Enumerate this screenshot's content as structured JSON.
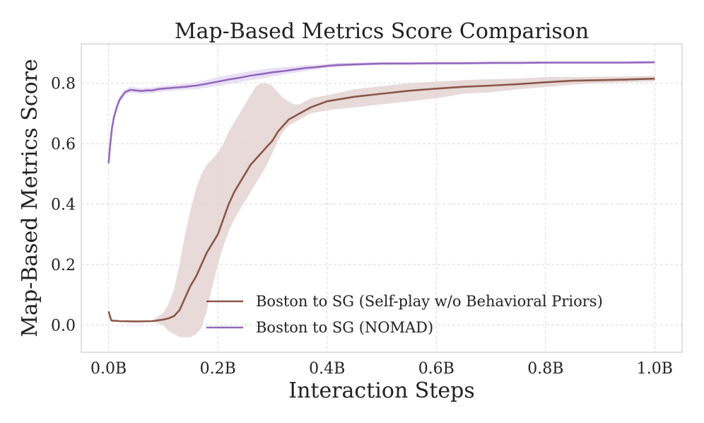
{
  "chart_data": {
    "type": "line",
    "title": "Map-Based Metrics Score Comparison",
    "xlabel": "Interaction Steps",
    "ylabel": "Map-Based Metrics Score",
    "xlim": [
      -0.05,
      1.05
    ],
    "ylim": [
      -0.09,
      0.93
    ],
    "x_ticks": [
      0.0,
      0.2,
      0.4,
      0.6,
      0.8,
      1.0
    ],
    "x_tick_labels": [
      "0.0B",
      "0.2B",
      "0.4B",
      "0.6B",
      "0.8B",
      "1.0B"
    ],
    "y_ticks": [
      0.0,
      0.2,
      0.4,
      0.6,
      0.8
    ],
    "y_tick_labels": [
      "0.0",
      "0.2",
      "0.4",
      "0.6",
      "0.8"
    ],
    "grid": true,
    "legend_position": "lower-right",
    "series": [
      {
        "name": "Boston to SG (Self-play w/o Behavioral Priors)",
        "color": "#8c564b",
        "band_color": "#e3d3d1",
        "x": [
          0.0,
          0.005,
          0.02,
          0.05,
          0.08,
          0.1,
          0.11,
          0.12,
          0.13,
          0.14,
          0.15,
          0.16,
          0.17,
          0.18,
          0.19,
          0.2,
          0.21,
          0.22,
          0.23,
          0.24,
          0.25,
          0.26,
          0.27,
          0.28,
          0.29,
          0.3,
          0.31,
          0.32,
          0.33,
          0.34,
          0.35,
          0.37,
          0.4,
          0.45,
          0.5,
          0.55,
          0.6,
          0.65,
          0.7,
          0.75,
          0.8,
          0.85,
          0.9,
          0.95,
          1.0
        ],
        "values": [
          0.045,
          0.015,
          0.013,
          0.012,
          0.013,
          0.018,
          0.022,
          0.03,
          0.05,
          0.09,
          0.13,
          0.16,
          0.2,
          0.24,
          0.27,
          0.3,
          0.35,
          0.4,
          0.44,
          0.47,
          0.5,
          0.53,
          0.55,
          0.57,
          0.59,
          0.61,
          0.64,
          0.66,
          0.68,
          0.69,
          0.7,
          0.72,
          0.74,
          0.755,
          0.765,
          0.775,
          0.782,
          0.788,
          0.792,
          0.797,
          0.803,
          0.808,
          0.81,
          0.812,
          0.815
        ],
        "lower": [
          0.04,
          0.012,
          0.011,
          0.01,
          0.011,
          0.0,
          -0.02,
          -0.03,
          -0.04,
          -0.04,
          -0.04,
          -0.03,
          -0.01,
          0.05,
          0.13,
          0.2,
          0.26,
          0.31,
          0.35,
          0.38,
          0.41,
          0.44,
          0.47,
          0.5,
          0.53,
          0.57,
          0.61,
          0.64,
          0.66,
          0.67,
          0.68,
          0.7,
          0.71,
          0.72,
          0.73,
          0.74,
          0.75,
          0.765,
          0.77,
          0.78,
          0.787,
          0.795,
          0.8,
          0.803,
          0.806
        ],
        "upper": [
          0.05,
          0.018,
          0.015,
          0.014,
          0.015,
          0.04,
          0.07,
          0.12,
          0.2,
          0.3,
          0.38,
          0.45,
          0.5,
          0.53,
          0.55,
          0.57,
          0.6,
          0.64,
          0.67,
          0.7,
          0.73,
          0.76,
          0.79,
          0.8,
          0.8,
          0.79,
          0.77,
          0.75,
          0.74,
          0.73,
          0.73,
          0.75,
          0.76,
          0.78,
          0.79,
          0.8,
          0.805,
          0.81,
          0.813,
          0.815,
          0.82,
          0.82,
          0.822,
          0.822,
          0.824
        ]
      },
      {
        "name": "Boston to SG (NOMAD)",
        "color": "#9467bd",
        "band_color": "#e6dbf3",
        "x": [
          0.0,
          0.003,
          0.006,
          0.01,
          0.015,
          0.02,
          0.03,
          0.04,
          0.05,
          0.06,
          0.07,
          0.08,
          0.09,
          0.1,
          0.12,
          0.14,
          0.16,
          0.18,
          0.2,
          0.22,
          0.24,
          0.26,
          0.28,
          0.3,
          0.32,
          0.34,
          0.36,
          0.38,
          0.4,
          0.42,
          0.45,
          0.5,
          0.55,
          0.6,
          0.65,
          0.7,
          0.75,
          0.8,
          0.85,
          0.9,
          0.95,
          1.0
        ],
        "values": [
          0.535,
          0.6,
          0.65,
          0.69,
          0.72,
          0.745,
          0.77,
          0.778,
          0.776,
          0.774,
          0.776,
          0.776,
          0.78,
          0.782,
          0.785,
          0.788,
          0.792,
          0.798,
          0.805,
          0.812,
          0.818,
          0.825,
          0.83,
          0.836,
          0.84,
          0.845,
          0.85,
          0.853,
          0.857,
          0.86,
          0.862,
          0.865,
          0.865,
          0.866,
          0.866,
          0.867,
          0.867,
          0.868,
          0.868,
          0.868,
          0.868,
          0.869
        ],
        "lower": [
          0.53,
          0.59,
          0.64,
          0.68,
          0.71,
          0.735,
          0.76,
          0.768,
          0.766,
          0.764,
          0.766,
          0.766,
          0.77,
          0.772,
          0.775,
          0.778,
          0.78,
          0.785,
          0.79,
          0.797,
          0.803,
          0.81,
          0.815,
          0.822,
          0.828,
          0.834,
          0.84,
          0.845,
          0.85,
          0.853,
          0.856,
          0.86,
          0.861,
          0.862,
          0.862,
          0.863,
          0.863,
          0.864,
          0.864,
          0.864,
          0.864,
          0.865
        ],
        "upper": [
          0.54,
          0.61,
          0.66,
          0.7,
          0.73,
          0.755,
          0.78,
          0.788,
          0.786,
          0.784,
          0.786,
          0.786,
          0.79,
          0.792,
          0.795,
          0.798,
          0.804,
          0.811,
          0.82,
          0.827,
          0.833,
          0.84,
          0.845,
          0.85,
          0.853,
          0.856,
          0.86,
          0.861,
          0.864,
          0.867,
          0.868,
          0.87,
          0.869,
          0.87,
          0.87,
          0.871,
          0.871,
          0.872,
          0.872,
          0.872,
          0.872,
          0.873
        ]
      }
    ]
  }
}
